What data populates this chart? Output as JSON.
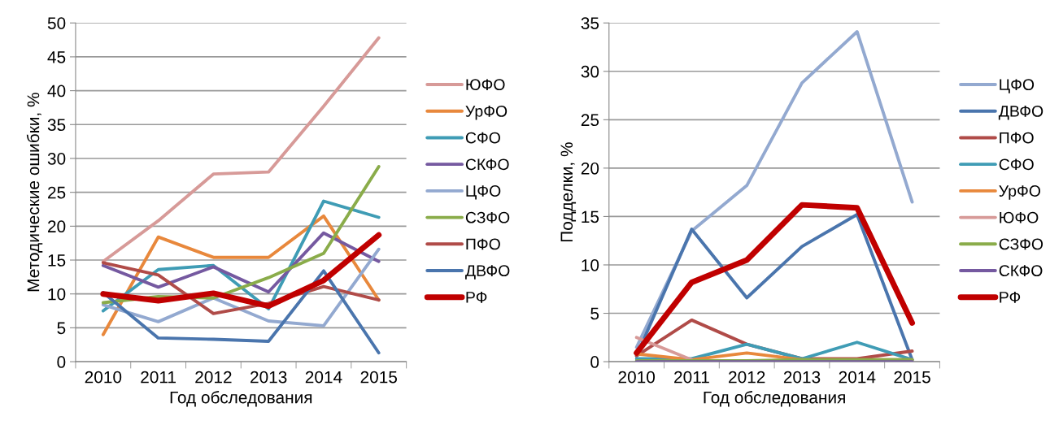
{
  "chart_data": [
    {
      "type": "line",
      "xlabel": "Год обследования",
      "ylabel": "Методические ошибки, %",
      "categories": [
        "2010",
        "2011",
        "2012",
        "2013",
        "2014",
        "2015"
      ],
      "ylim": [
        0,
        50
      ],
      "yticks": [
        0,
        5,
        10,
        15,
        20,
        25,
        30,
        35,
        40,
        45,
        50
      ],
      "grid": "y",
      "legend": "right",
      "marker": "none",
      "line_style": "solid",
      "series": [
        {
          "name": "ЮФО",
          "color": "#d79a98",
          "values": [
            14.8,
            20.8,
            27.7,
            28.0,
            37.7,
            47.8
          ]
        },
        {
          "name": "УрФО",
          "color": "#e8883c",
          "values": [
            4.0,
            18.4,
            15.4,
            15.4,
            21.5,
            9.1
          ]
        },
        {
          "name": "СФО",
          "color": "#3f9cb5",
          "values": [
            7.5,
            13.6,
            14.2,
            7.8,
            23.7,
            21.3
          ]
        },
        {
          "name": "СКФО",
          "color": "#7559a0",
          "values": [
            14.2,
            11.0,
            14.0,
            10.3,
            19.0,
            14.8
          ]
        },
        {
          "name": "ЦФО",
          "color": "#93a9d0",
          "values": [
            8.4,
            5.9,
            9.4,
            6.0,
            5.3,
            16.6
          ]
        },
        {
          "name": "СЗФО",
          "color": "#8aac4a",
          "values": [
            8.7,
            9.6,
            9.4,
            12.4,
            16.0,
            28.8
          ]
        },
        {
          "name": "ПФО",
          "color": "#b04b48",
          "values": [
            14.6,
            12.8,
            7.1,
            8.6,
            11.1,
            9.1
          ]
        },
        {
          "name": "ДВФО",
          "color": "#4a75ad",
          "values": [
            10.2,
            3.5,
            3.3,
            3.0,
            13.4,
            1.3
          ]
        },
        {
          "name": "РФ",
          "color": "#c00000",
          "values": [
            10.0,
            9.0,
            10.1,
            8.2,
            12.0,
            18.7
          ]
        }
      ]
    },
    {
      "type": "line",
      "xlabel": "Год обследования",
      "ylabel": "Подделки, %",
      "categories": [
        "2010",
        "2011",
        "2012",
        "2013",
        "2014",
        "2015"
      ],
      "ylim": [
        0,
        35
      ],
      "yticks": [
        0,
        5,
        10,
        15,
        20,
        25,
        30,
        35
      ],
      "grid": "y",
      "legend": "right",
      "marker": "none",
      "line_style": "solid",
      "series": [
        {
          "name": "ЦФО",
          "color": "#93a9d0",
          "values": [
            1.5,
            13.5,
            18.2,
            28.8,
            34.1,
            16.5
          ]
        },
        {
          "name": "ДВФО",
          "color": "#4a75ad",
          "values": [
            0.6,
            13.7,
            6.6,
            11.9,
            15.2,
            0.2
          ]
        },
        {
          "name": "ПФО",
          "color": "#b04b48",
          "values": [
            0.6,
            4.3,
            1.8,
            0.3,
            0.3,
            1.1
          ]
        },
        {
          "name": "СФО",
          "color": "#3f9cb5",
          "values": [
            0.3,
            0.3,
            1.8,
            0.3,
            2.0,
            0.2
          ]
        },
        {
          "name": "УрФО",
          "color": "#e8883c",
          "values": [
            0.8,
            0.2,
            0.9,
            0.2,
            0.2,
            0.2
          ]
        },
        {
          "name": "ЮФО",
          "color": "#d79a98",
          "values": [
            2.5,
            0.2,
            null,
            null,
            null,
            null
          ]
        },
        {
          "name": "СЗФО",
          "color": "#8aac4a",
          "values": [
            0.1,
            0.1,
            0.1,
            0.2,
            0.2,
            0.2
          ]
        },
        {
          "name": "СКФО",
          "color": "#7559a0",
          "values": [
            0,
            0,
            0,
            0,
            0,
            0
          ]
        },
        {
          "name": "РФ",
          "color": "#c00000",
          "values": [
            0.9,
            8.2,
            10.5,
            16.2,
            15.9,
            4.0
          ]
        }
      ]
    }
  ]
}
